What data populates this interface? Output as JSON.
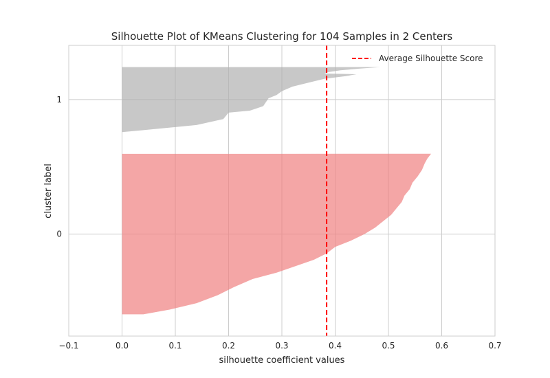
{
  "chart_data": {
    "type": "area",
    "title": "Silhouette Plot of KMeans Clustering for 104 Samples in 2 Centers",
    "xlabel": "silhouette coefficient values",
    "ylabel": "cluster label",
    "xlim": [
      -0.1,
      0.7
    ],
    "x_ticks": [
      "−0.1",
      "0.0",
      "0.1",
      "0.2",
      "0.3",
      "0.4",
      "0.5",
      "0.6",
      "0.7"
    ],
    "y_ticks": [
      "0",
      "1"
    ],
    "grid": true,
    "legend_position": "top-right",
    "average_silhouette_score": 0.384,
    "average_line": {
      "name": "Average Silhouette Score",
      "color": "#ff0000"
    },
    "series": [
      {
        "name": "0",
        "color": "#f08080",
        "sample_count": 74,
        "profile": [
          [
            0.0,
            0.04
          ],
          [
            0.03,
            0.09
          ],
          [
            0.07,
            0.14
          ],
          [
            0.12,
            0.18
          ],
          [
            0.17,
            0.21
          ],
          [
            0.22,
            0.245
          ],
          [
            0.26,
            0.29
          ],
          [
            0.3,
            0.325
          ],
          [
            0.34,
            0.36
          ],
          [
            0.38,
            0.384
          ],
          [
            0.42,
            0.4
          ],
          [
            0.46,
            0.43
          ],
          [
            0.5,
            0.455
          ],
          [
            0.54,
            0.475
          ],
          [
            0.58,
            0.49
          ],
          [
            0.62,
            0.505
          ],
          [
            0.66,
            0.515
          ],
          [
            0.7,
            0.525
          ],
          [
            0.74,
            0.53
          ],
          [
            0.78,
            0.54
          ],
          [
            0.82,
            0.545
          ],
          [
            0.86,
            0.555
          ],
          [
            0.9,
            0.563
          ],
          [
            0.94,
            0.568
          ],
          [
            0.97,
            0.573
          ],
          [
            1.0,
            0.58
          ]
        ]
      },
      {
        "name": "1",
        "color": "#b0b0b0",
        "sample_count": 30,
        "profile": [
          [
            0.0,
            0.0
          ],
          [
            0.03,
            0.04
          ],
          [
            0.07,
            0.09
          ],
          [
            0.11,
            0.14
          ],
          [
            0.2,
            0.19
          ],
          [
            0.3,
            0.2
          ],
          [
            0.33,
            0.24
          ],
          [
            0.4,
            0.265
          ],
          [
            0.52,
            0.275
          ],
          [
            0.57,
            0.29
          ],
          [
            0.63,
            0.3
          ],
          [
            0.7,
            0.32
          ],
          [
            0.76,
            0.35
          ],
          [
            0.82,
            0.38
          ],
          [
            0.86,
            0.42
          ],
          [
            0.89,
            0.44
          ],
          [
            0.9,
            0.38
          ],
          [
            0.92,
            0.385
          ],
          [
            0.95,
            0.41
          ],
          [
            0.975,
            0.445
          ],
          [
            1.0,
            0.485
          ]
        ]
      }
    ]
  }
}
